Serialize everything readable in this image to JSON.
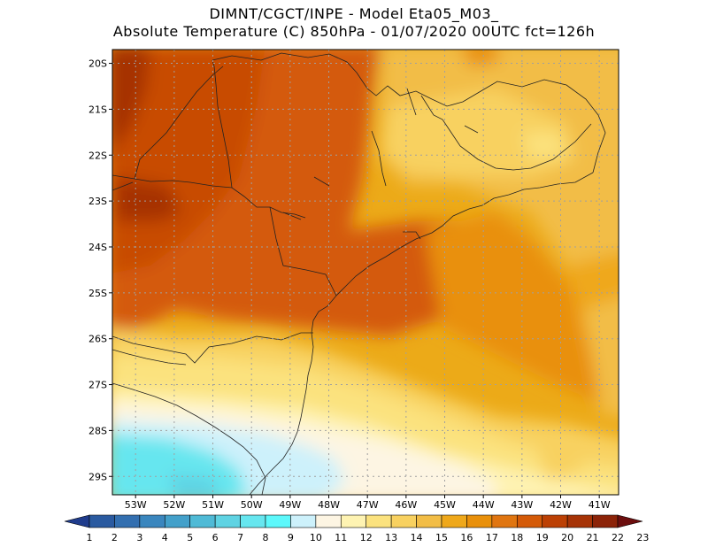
{
  "title": {
    "line1": "DIMNT/CGCT/INPE -  Model Eta05_M03_",
    "line2": "Absolute Temperature (C) 850hPa -  01/07/2020 00UTC fct=126h"
  },
  "map": {
    "lat_labels": [
      "20S",
      "21S",
      "22S",
      "23S",
      "24S",
      "25S",
      "26S",
      "27S",
      "28S",
      "29S"
    ],
    "lon_labels": [
      "53W",
      "52W",
      "51W",
      "50W",
      "49W",
      "48W",
      "47W",
      "46W",
      "45W",
      "44W",
      "43W",
      "42W",
      "41W"
    ],
    "lat_values": [
      -20,
      -21,
      -22,
      -23,
      -24,
      -25,
      -26,
      -27,
      -28,
      -29
    ],
    "lon_values": [
      -53,
      -52,
      -51,
      -50,
      -49,
      -48,
      -47,
      -46,
      -45,
      -44,
      -43,
      -42,
      -41
    ],
    "lat_range": [
      -29.4,
      -19.7
    ],
    "lon_range": [
      -53.6,
      -40.5
    ]
  },
  "colorbar": {
    "labels": [
      "1",
      "2",
      "3",
      "4",
      "5",
      "6",
      "7",
      "8",
      "9",
      "10",
      "11",
      "12",
      "13",
      "14",
      "15",
      "16",
      "17",
      "18",
      "19",
      "20",
      "21",
      "22",
      "23"
    ],
    "colors": [
      "#1f3c8c",
      "#2a5aa0",
      "#336fb0",
      "#3a86be",
      "#43a0ca",
      "#4fbad6",
      "#5fd3e3",
      "#66e6ef",
      "#5cf8fb",
      "#cdf1fb",
      "#fdf5e3",
      "#fef3b2",
      "#fbe27e",
      "#f8d160",
      "#f2bd46",
      "#efa81a",
      "#e9900a",
      "#e07510",
      "#d45a08",
      "#bc4004",
      "#a63306",
      "#8c2308",
      "#6c0e0e"
    ]
  }
}
